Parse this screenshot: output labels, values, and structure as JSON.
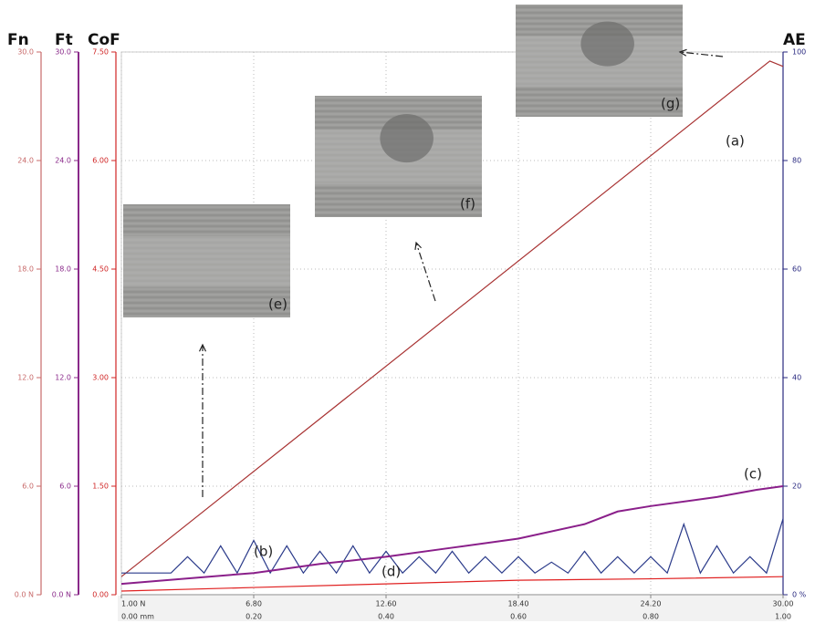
{
  "chart_data": {
    "type": "line",
    "grid": true,
    "xlim": [
      0,
      1
    ],
    "xticks": [
      {
        "value": 0,
        "label": "0.00 mm"
      },
      {
        "value": 0.2,
        "label": "0.20"
      },
      {
        "value": 0.4,
        "label": "0.40"
      },
      {
        "value": 0.6,
        "label": "0.60"
      },
      {
        "value": 0.8,
        "label": "0.80"
      },
      {
        "value": 1,
        "label": "1.00"
      }
    ],
    "x2lim": [
      1,
      30
    ],
    "x2ticks": [
      {
        "value": 1,
        "label": "1.00 N"
      },
      {
        "value": 6.8,
        "label": "6.80"
      },
      {
        "value": 12.6,
        "label": "12.60"
      },
      {
        "value": 18.4,
        "label": "18.40"
      },
      {
        "value": 24.2,
        "label": "24.20"
      },
      {
        "value": 30,
        "label": "30.00"
      }
    ],
    "axes": [
      {
        "title": "Fn",
        "color": "#c86a6a",
        "lim": [
          0,
          30
        ],
        "ticks": [
          {
            "value": 0,
            "label": "0.0 N"
          },
          {
            "value": 6,
            "label": "6.0"
          },
          {
            "value": 12,
            "label": "12.0"
          },
          {
            "value": 18,
            "label": "18.0"
          },
          {
            "value": 24,
            "label": "24.0"
          },
          {
            "value": 30,
            "label": "30.0"
          }
        ]
      },
      {
        "title": "Ft",
        "color": "#8a2a8a",
        "lim": [
          0,
          30
        ],
        "ticks": [
          {
            "value": 0,
            "label": "0.0 N"
          },
          {
            "value": 6,
            "label": "6.0"
          },
          {
            "value": 12,
            "label": "12.0"
          },
          {
            "value": 18,
            "label": "18.0"
          },
          {
            "value": 24,
            "label": "24.0"
          },
          {
            "value": 30,
            "label": "30.0"
          }
        ]
      },
      {
        "title": "CoF",
        "color": "#d02525",
        "lim": [
          0,
          7.5
        ],
        "ticks": [
          {
            "value": 0,
            "label": "0.00"
          },
          {
            "value": 1.5,
            "label": "1.50"
          },
          {
            "value": 3,
            "label": "3.00"
          },
          {
            "value": 4.5,
            "label": "4.50"
          },
          {
            "value": 6,
            "label": "6.00"
          },
          {
            "value": 7.5,
            "label": "7.50"
          }
        ]
      },
      {
        "title": "AE",
        "color": "#2a2a80",
        "lim": [
          0,
          100
        ],
        "ticks": [
          {
            "value": 0,
            "label": "0 %"
          },
          20,
          40,
          60,
          80,
          100
        ]
      }
    ],
    "series": [
      {
        "name": "(a)",
        "axis": 0,
        "color": "#a83232",
        "x": [
          0,
          0.98,
          1
        ],
        "values": [
          1.0,
          29.5,
          29.2
        ]
      },
      {
        "name": "(b)",
        "axis": 3,
        "color": "#2a3a8a",
        "x": [
          0,
          0.025,
          0.05,
          0.075,
          0.1,
          0.125,
          0.15,
          0.175,
          0.2,
          0.225,
          0.25,
          0.275,
          0.3,
          0.325,
          0.35,
          0.375,
          0.4,
          0.425,
          0.45,
          0.475,
          0.5,
          0.525,
          0.55,
          0.575,
          0.6,
          0.625,
          0.65,
          0.675,
          0.7,
          0.725,
          0.75,
          0.775,
          0.8,
          0.825,
          0.85,
          0.875,
          0.9,
          0.925,
          0.95,
          0.975,
          1
        ],
        "values": [
          4,
          4,
          4,
          4,
          7,
          4,
          9,
          4,
          10,
          4,
          9,
          4,
          8,
          4,
          9,
          4,
          8,
          4,
          7,
          4,
          8,
          4,
          7,
          4,
          7,
          4,
          6,
          4,
          8,
          4,
          7,
          4,
          7,
          4,
          13,
          4,
          9,
          4,
          7,
          4,
          14
        ]
      },
      {
        "name": "(c)",
        "axis": 1,
        "color": "#8a1f8a",
        "x": [
          0,
          0.2,
          0.3,
          0.4,
          0.5,
          0.6,
          0.7,
          0.75,
          0.8,
          0.9,
          0.96,
          1
        ],
        "values": [
          0.6,
          1.2,
          1.7,
          2.1,
          2.6,
          3.1,
          3.9,
          4.6,
          4.9,
          5.4,
          5.8,
          6.0
        ]
      },
      {
        "name": "(d)",
        "axis": 2,
        "color": "#e02020",
        "x": [
          0,
          0.2,
          0.4,
          0.6,
          0.8,
          1
        ],
        "values": [
          0.05,
          0.1,
          0.15,
          0.2,
          0.22,
          0.25
        ]
      }
    ],
    "insets": [
      {
        "label": "(e)"
      },
      {
        "label": "(f)"
      },
      {
        "label": "(g)"
      }
    ]
  }
}
